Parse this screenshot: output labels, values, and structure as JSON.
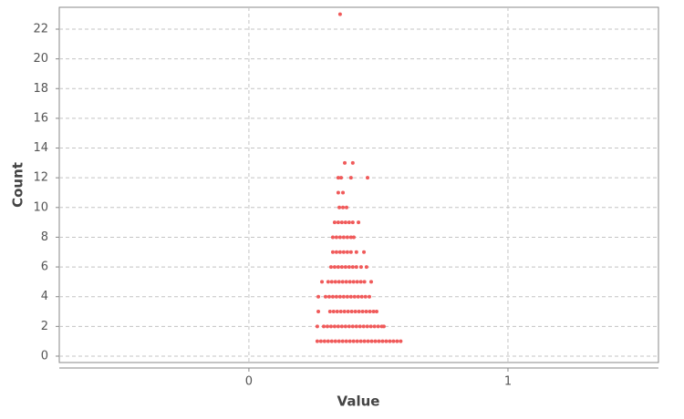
{
  "chart_data": {
    "type": "scatter",
    "x_label": "Value",
    "y_label": "Count",
    "color": "#f05a5a",
    "grid": true,
    "xlim": [
      -0.732,
      1.581
    ],
    "ylim": [
      -0.43,
      23.47
    ],
    "xticks": [
      0,
      1
    ],
    "yticks": [
      0,
      2,
      4,
      6,
      8,
      10,
      12,
      14,
      16,
      18,
      20,
      22
    ],
    "x": [
      0.264,
      0.278,
      0.292,
      0.306,
      0.32,
      0.334,
      0.348,
      0.362,
      0.376,
      0.39,
      0.404,
      0.418,
      0.432,
      0.446,
      0.46,
      0.474,
      0.488,
      0.502,
      0.516,
      0.53,
      0.544,
      0.558,
      0.572,
      0.586,
      0.264,
      0.289,
      0.303,
      0.317,
      0.331,
      0.345,
      0.359,
      0.373,
      0.387,
      0.401,
      0.415,
      0.429,
      0.443,
      0.457,
      0.471,
      0.485,
      0.499,
      0.513,
      0.521,
      0.268,
      0.313,
      0.327,
      0.341,
      0.355,
      0.369,
      0.383,
      0.397,
      0.411,
      0.425,
      0.439,
      0.453,
      0.467,
      0.481,
      0.493,
      0.268,
      0.296,
      0.31,
      0.324,
      0.338,
      0.352,
      0.366,
      0.38,
      0.394,
      0.408,
      0.422,
      0.436,
      0.45,
      0.465,
      0.282,
      0.306,
      0.32,
      0.334,
      0.348,
      0.362,
      0.376,
      0.39,
      0.404,
      0.418,
      0.432,
      0.446,
      0.472,
      0.317,
      0.331,
      0.345,
      0.359,
      0.373,
      0.387,
      0.401,
      0.415,
      0.433,
      0.454,
      0.324,
      0.338,
      0.352,
      0.366,
      0.38,
      0.394,
      0.415,
      0.444,
      0.324,
      0.338,
      0.352,
      0.366,
      0.38,
      0.394,
      0.405,
      0.331,
      0.345,
      0.359,
      0.373,
      0.387,
      0.401,
      0.423,
      0.349,
      0.363,
      0.377,
      0.345,
      0.363,
      0.345,
      0.356,
      0.394,
      0.458,
      0.37,
      0.401,
      0.352
    ],
    "values": [
      1,
      1,
      1,
      1,
      1,
      1,
      1,
      1,
      1,
      1,
      1,
      1,
      1,
      1,
      1,
      1,
      1,
      1,
      1,
      1,
      1,
      1,
      1,
      1,
      2,
      2,
      2,
      2,
      2,
      2,
      2,
      2,
      2,
      2,
      2,
      2,
      2,
      2,
      2,
      2,
      2,
      2,
      2,
      3,
      3,
      3,
      3,
      3,
      3,
      3,
      3,
      3,
      3,
      3,
      3,
      3,
      3,
      3,
      4,
      4,
      4,
      4,
      4,
      4,
      4,
      4,
      4,
      4,
      4,
      4,
      4,
      4,
      5,
      5,
      5,
      5,
      5,
      5,
      5,
      5,
      5,
      5,
      5,
      5,
      5,
      6,
      6,
      6,
      6,
      6,
      6,
      6,
      6,
      6,
      6,
      7,
      7,
      7,
      7,
      7,
      7,
      7,
      7,
      8,
      8,
      8,
      8,
      8,
      8,
      8,
      9,
      9,
      9,
      9,
      9,
      9,
      9,
      10,
      10,
      10,
      11,
      11,
      12,
      12,
      12,
      12,
      13,
      13,
      23
    ]
  }
}
